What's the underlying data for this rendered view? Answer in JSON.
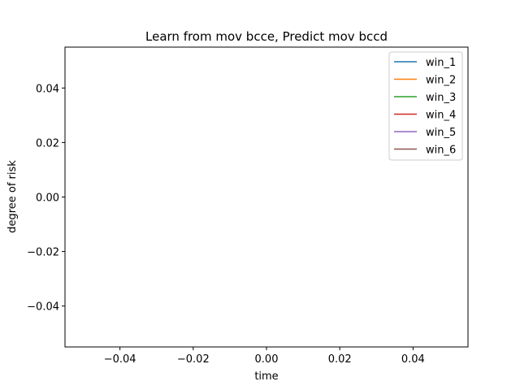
{
  "chart_data": {
    "type": "line",
    "title": "Learn from mov bcce, Predict mov bccd",
    "xlabel": "time",
    "ylabel": "degree of risk",
    "xlim": [
      -0.055,
      0.055
    ],
    "ylim": [
      -0.055,
      0.055
    ],
    "xticks": [
      -0.04,
      -0.02,
      0.0,
      0.02,
      0.04
    ],
    "yticks": [
      -0.04,
      -0.02,
      0.0,
      0.02,
      0.04
    ],
    "xtick_labels": [
      "−0.04",
      "−0.02",
      "0.00",
      "0.02",
      "0.04"
    ],
    "ytick_labels": [
      "−0.04",
      "−0.02",
      "0.00",
      "0.02",
      "0.04"
    ],
    "grid": false,
    "legend_position": "top-right",
    "series": [
      {
        "name": "win_1",
        "color": "#1f77b4",
        "x": [],
        "y": []
      },
      {
        "name": "win_2",
        "color": "#ff7f0e",
        "x": [],
        "y": []
      },
      {
        "name": "win_3",
        "color": "#2ca02c",
        "x": [],
        "y": []
      },
      {
        "name": "win_4",
        "color": "#d62728",
        "x": [],
        "y": []
      },
      {
        "name": "win_5",
        "color": "#9467bd",
        "x": [],
        "y": []
      },
      {
        "name": "win_6",
        "color": "#8c564b",
        "x": [],
        "y": []
      }
    ]
  }
}
